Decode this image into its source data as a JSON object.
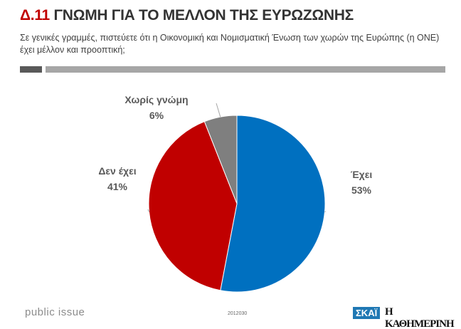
{
  "header": {
    "code": "Δ.11",
    "title": "ΓΝΩΜΗ ΓΙΑ ΤΟ ΜΕΛΛΟΝ ΤΗΣ ΕΥΡΩΖΩΝΗΣ",
    "question": "Σε γενικές γραμμές, πιστεύετε ότι η Οικονομική και Νομισματική Ένωση των χωρών της Ευρώπης (η ΟΝΕ) έχει μέλλον και προοπτική;"
  },
  "chart_data": {
    "type": "pie",
    "title": "ΓΝΩΜΗ ΓΙΑ ΤΟ ΜΕΛΛΟΝ ΤΗΣ ΕΥΡΩΖΩΝΗΣ",
    "categories": [
      "Έχει",
      "Δεν έχει",
      "Χωρίς γνώμη"
    ],
    "values": [
      53,
      41,
      6
    ],
    "labels": [
      "53%",
      "41%",
      "6%"
    ],
    "colors": [
      "#0070c0",
      "#c00000",
      "#7f7f7f"
    ],
    "start": "top",
    "direction": "clockwise"
  },
  "footer": {
    "brand": "public issue",
    "code": "2012030",
    "logo_skai": "ΣΚΑΪ",
    "logo_kathimerini": "Η ΚΑΘΗΜΕΡΙΝΗ"
  }
}
